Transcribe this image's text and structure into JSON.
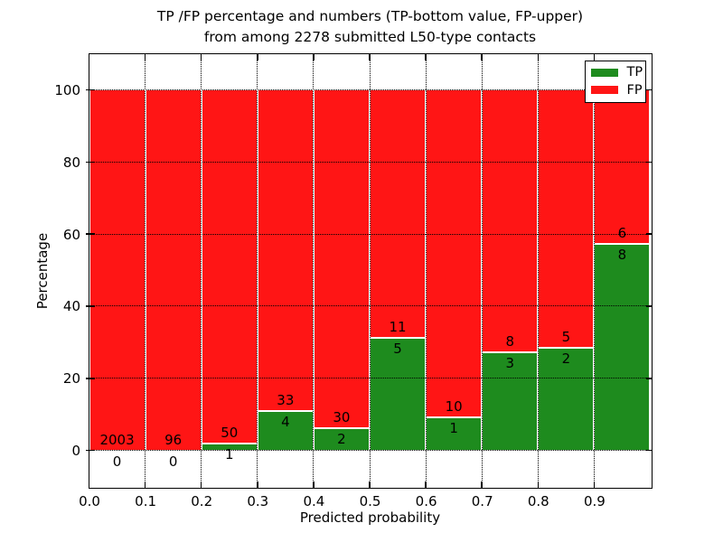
{
  "chart_data": {
    "type": "bar",
    "stacked": true,
    "title": "TP /FP percentage and numbers (TP-bottom value, FP-upper)\nfrom among 2278 submitted L50-type contacts",
    "title_lines": [
      "TP /FP percentage and numbers (TP-bottom value, FP-upper)",
      "from among 2278 submitted L50-type contacts"
    ],
    "xlabel": "Predicted probability",
    "ylabel": "Percentage",
    "xlim": [
      0.0,
      1.0
    ],
    "ylim": [
      -10,
      110
    ],
    "grid": true,
    "total_submitted": 2278,
    "x_tick_values": [
      0.0,
      0.1,
      0.2,
      0.3,
      0.4,
      0.5,
      0.6,
      0.7,
      0.8,
      0.9
    ],
    "x_tick_labels": [
      "0.0",
      "0.1",
      "0.2",
      "0.3",
      "0.4",
      "0.5",
      "0.6",
      "0.7",
      "0.8",
      "0.9"
    ],
    "y_tick_values": [
      0,
      20,
      40,
      60,
      80,
      100
    ],
    "y_tick_labels": [
      "0",
      "20",
      "40",
      "60",
      "80",
      "100"
    ],
    "bins": [
      [
        0.0,
        0.1
      ],
      [
        0.1,
        0.2
      ],
      [
        0.2,
        0.3
      ],
      [
        0.3,
        0.4
      ],
      [
        0.4,
        0.5
      ],
      [
        0.5,
        0.6
      ],
      [
        0.6,
        0.7
      ],
      [
        0.7,
        0.8
      ],
      [
        0.8,
        0.9
      ],
      [
        0.9,
        1.0
      ]
    ],
    "series": [
      {
        "name": "TP",
        "color": "#1e8b1e",
        "counts": [
          0,
          0,
          1,
          4,
          2,
          5,
          1,
          3,
          2,
          8
        ],
        "percent": [
          0,
          0,
          1.96,
          10.81,
          6.25,
          31.25,
          9.09,
          27.27,
          28.57,
          57.14
        ]
      },
      {
        "name": "FP",
        "color": "#ff1515",
        "counts": [
          2003,
          96,
          50,
          33,
          30,
          11,
          10,
          8,
          5,
          6
        ],
        "percent": [
          100,
          100,
          98.04,
          89.19,
          93.75,
          68.75,
          90.91,
          72.73,
          71.43,
          42.86
        ]
      }
    ],
    "legend": {
      "position": "upper-right",
      "entries": [
        {
          "label": "TP",
          "color": "#1e8b1e"
        },
        {
          "label": "FP",
          "color": "#ff1515"
        }
      ]
    },
    "annotation_rule": "FP count above TP/FP boundary, TP count below boundary"
  }
}
